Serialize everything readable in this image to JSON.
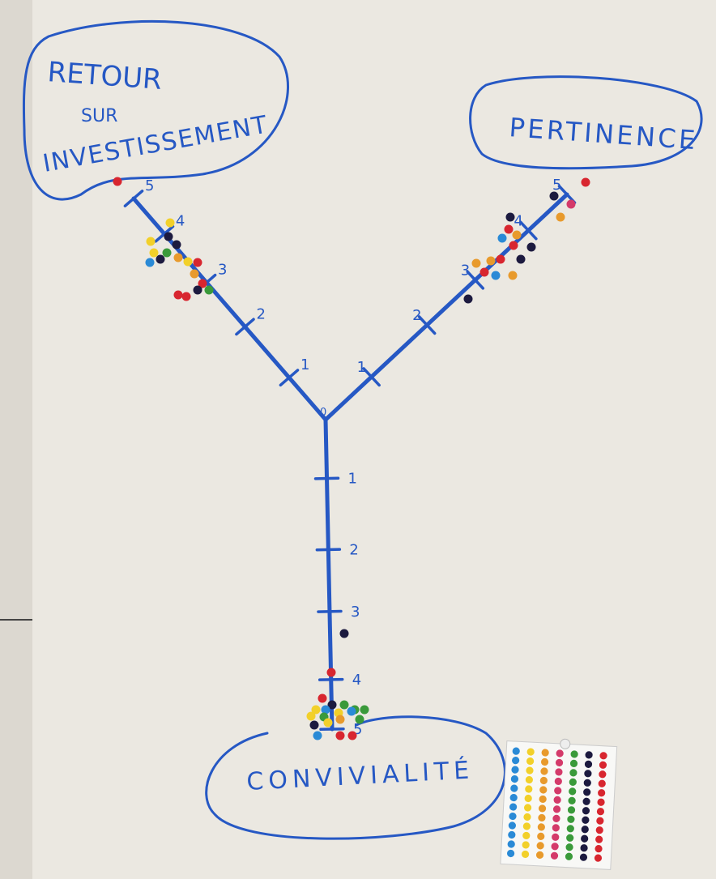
{
  "origin_label": "0",
  "axes": [
    {
      "title_lines": [
        "RETOUR",
        "SUR",
        "INVESTISSEMENT"
      ],
      "tick_labels": [
        "1",
        "2",
        "3",
        "4",
        "5"
      ]
    },
    {
      "title_lines": [
        "PERTINENCE"
      ],
      "tick_labels": [
        "1",
        "2",
        "3",
        "4",
        "5"
      ]
    },
    {
      "title_lines": [
        "CONVIVIALITÉ"
      ],
      "tick_labels": [
        "1",
        "2",
        "3",
        "4",
        "5"
      ]
    }
  ]
}
